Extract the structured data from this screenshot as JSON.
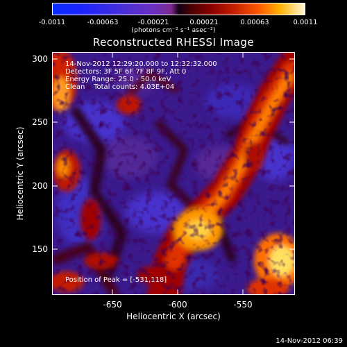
{
  "colorbar": {
    "tick_labels": [
      "-0.0011",
      "-0.00063",
      "-0.00021",
      "0.00021",
      "0.00063",
      "0.0011"
    ],
    "units": "(photons cm⁻² s⁻¹ asec⁻²)"
  },
  "plot": {
    "title": "Reconstructed RHESSI Image",
    "xlabel": "Heliocentric X (arcsec)",
    "ylabel": "Heliocentric Y (arcsec)",
    "x_ticks": [
      "-650",
      "-600",
      "-550"
    ],
    "y_ticks": [
      "300",
      "250",
      "200",
      "150"
    ]
  },
  "annotations": {
    "time_range": "14-Nov-2012 12:29:20.000 to 12:32:32.000",
    "detectors": "Detectors: 3F 5F 6F 7F 8F 9F, Att 0",
    "energy_range": "Energy Range: 25.0 - 50.0 keV",
    "clean": "Clean    Total counts: 4.03E+04",
    "peak": "Position of Peak = [-531,118]"
  },
  "timestamp": "14-Nov-2012 06:39",
  "chart_data": {
    "type": "heatmap",
    "title": "Reconstructed RHESSI Image",
    "xlabel": "Heliocentric X (arcsec)",
    "ylabel": "Heliocentric Y (arcsec)",
    "xlim": [
      -698,
      -492
    ],
    "ylim": [
      113,
      306
    ],
    "colorbar_range": [
      -0.0011,
      0.0011
    ],
    "peak_position": [
      -531,
      118
    ]
  }
}
